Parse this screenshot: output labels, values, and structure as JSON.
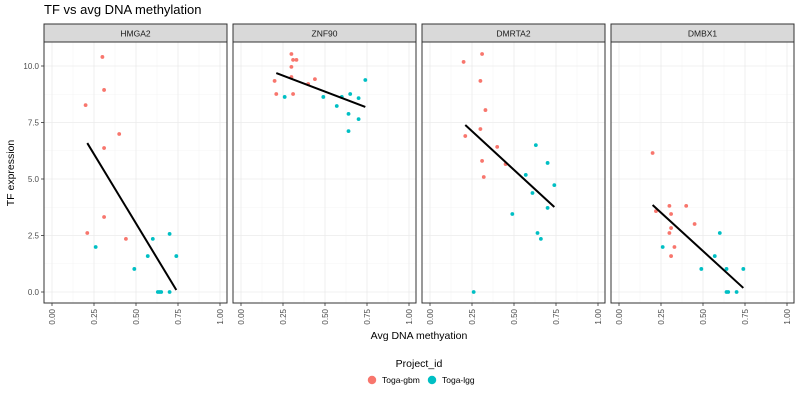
{
  "chart_data": {
    "type": "scatter",
    "title": "TF vs avg DNA methylation",
    "xlabel": "Avg DNA methyation",
    "ylabel": "TF expression",
    "xlim": [
      -0.05,
      1.05
    ],
    "ylim": [
      -0.5,
      11.1
    ],
    "x_ticks": [
      0.0,
      0.25,
      0.5,
      0.75,
      1.0
    ],
    "x_tick_labels": [
      "0.00",
      "0.25",
      "0.50",
      "0.75",
      "1.00"
    ],
    "y_ticks": [
      0.0,
      2.5,
      5.0,
      7.5,
      10.0
    ],
    "y_tick_labels": [
      "0.0",
      "2.5",
      "5.0",
      "7.5",
      "10.0"
    ],
    "grid": true,
    "legend": {
      "title": "Project_id",
      "placement": "bottom",
      "entries": [
        {
          "name": "Toga-gbm",
          "color": "#F8766D"
        },
        {
          "name": "Toga-lgg",
          "color": "#00BFC4"
        }
      ]
    },
    "panels": [
      {
        "name": "HMGA2",
        "series": [
          {
            "name": "Toga-gbm",
            "color": "#F8766D",
            "x": [
              0.3,
              0.31,
              0.2,
              0.4,
              0.31,
              0.31,
              0.21,
              0.44
            ],
            "y": [
              10.4,
              8.94,
              8.27,
              6.99,
              6.37,
              3.32,
              2.61,
              2.35
            ]
          },
          {
            "name": "Toga-lgg",
            "color": "#00BFC4",
            "x": [
              0.26,
              0.6,
              0.7,
              0.57,
              0.74,
              0.49,
              0.63,
              0.64,
              0.65,
              0.7
            ],
            "y": [
              1.99,
              2.35,
              2.57,
              1.59,
              1.59,
              1.02,
              0.0,
              0.0,
              0.0,
              0.0
            ]
          }
        ],
        "fit": {
          "x": [
            0.21,
            0.74
          ],
          "y": [
            6.59,
            0.09
          ]
        }
      },
      {
        "name": "ZNF90",
        "series": [
          {
            "name": "Toga-gbm",
            "color": "#F8766D",
            "x": [
              0.3,
              0.31,
              0.33,
              0.3,
              0.3,
              0.2,
              0.21,
              0.31,
              0.44,
              0.4
            ],
            "y": [
              10.53,
              10.27,
              10.27,
              9.96,
              9.51,
              9.34,
              8.76,
              8.76,
              9.42,
              9.2
            ]
          },
          {
            "name": "Toga-lgg",
            "color": "#00BFC4",
            "x": [
              0.26,
              0.49,
              0.6,
              0.65,
              0.7,
              0.74,
              0.57,
              0.64,
              0.7,
              0.64
            ],
            "y": [
              8.63,
              8.63,
              8.63,
              8.76,
              8.58,
              9.38,
              8.23,
              7.88,
              7.65,
              7.12
            ]
          }
        ],
        "fit": {
          "x": [
            0.21,
            0.74
          ],
          "y": [
            9.69,
            8.19
          ]
        }
      },
      {
        "name": "DMRTA2",
        "series": [
          {
            "name": "Toga-gbm",
            "color": "#F8766D",
            "x": [
              0.31,
              0.2,
              0.3,
              0.33,
              0.3,
              0.21,
              0.4,
              0.31,
              0.45,
              0.32
            ],
            "y": [
              10.53,
              10.18,
              9.34,
              8.05,
              7.21,
              6.9,
              6.42,
              5.8,
              5.66,
              5.09
            ]
          },
          {
            "name": "Toga-lgg",
            "color": "#00BFC4",
            "x": [
              0.63,
              0.7,
              0.57,
              0.74,
              0.61,
              0.7,
              0.49,
              0.64,
              0.66,
              0.26
            ],
            "y": [
              6.5,
              5.71,
              5.18,
              4.73,
              4.38,
              3.72,
              3.45,
              2.61,
              2.35,
              0.0
            ]
          }
        ],
        "fit": {
          "x": [
            0.21,
            0.74
          ],
          "y": [
            7.39,
            3.76
          ]
        }
      },
      {
        "name": "DMBX1",
        "series": [
          {
            "name": "Toga-gbm",
            "color": "#F8766D",
            "x": [
              0.2,
              0.3,
              0.4,
              0.22,
              0.31,
              0.45,
              0.31,
              0.3,
              0.33,
              0.31
            ],
            "y": [
              6.15,
              3.81,
              3.81,
              3.58,
              3.45,
              3.01,
              2.83,
              2.61,
              1.99,
              1.59
            ]
          },
          {
            "name": "Toga-lgg",
            "color": "#00BFC4",
            "x": [
              0.6,
              0.26,
              0.57,
              0.49,
              0.64,
              0.74,
              0.64,
              0.65,
              0.7
            ],
            "y": [
              2.61,
              1.99,
              1.59,
              1.02,
              1.02,
              1.02,
              0.0,
              0.0,
              0.0
            ]
          }
        ],
        "fit": {
          "x": [
            0.2,
            0.74
          ],
          "y": [
            3.85,
            0.18
          ]
        }
      }
    ]
  }
}
